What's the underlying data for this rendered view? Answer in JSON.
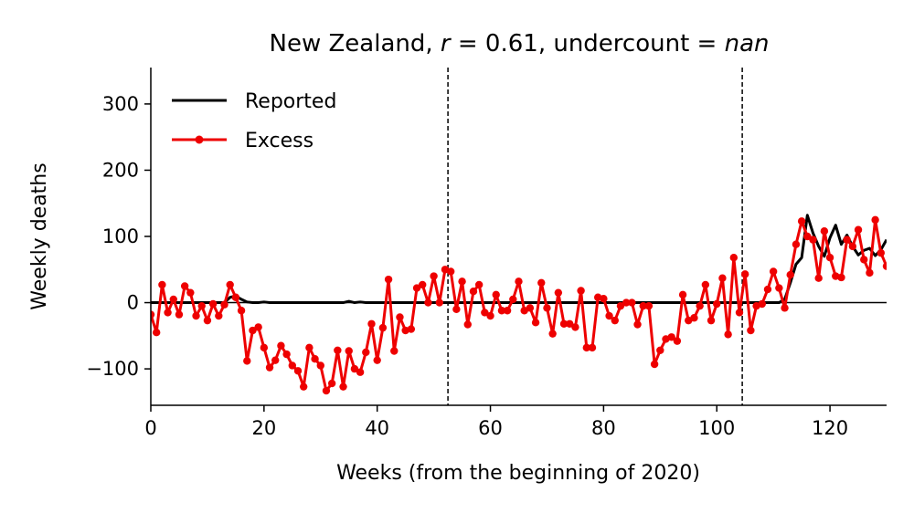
{
  "chart_data": {
    "type": "line",
    "title": {
      "prefix": "New Zealand, ",
      "r_symbol": "r",
      "r_value": " = 0.61, undercount = ",
      "nan": "nan"
    },
    "xlabel": "Weeks (from the beginning of 2020)",
    "ylabel": "Weekly deaths",
    "xlim": [
      0,
      130
    ],
    "ylim": [
      -155,
      355
    ],
    "xticks": [
      0,
      20,
      40,
      60,
      80,
      100,
      120
    ],
    "yticks": [
      -100,
      0,
      100,
      200,
      300
    ],
    "xtick_labels": [
      "0",
      "20",
      "40",
      "60",
      "80",
      "100",
      "120"
    ],
    "ytick_labels": [
      "−100",
      "0",
      "100",
      "200",
      "300"
    ],
    "vlines": [
      52.5,
      104.5
    ],
    "hline": 0,
    "legend_position": "upper-left",
    "series": [
      {
        "name": "Reported",
        "color": "#000000",
        "marker": "none",
        "values": [
          0,
          0,
          0,
          0,
          0,
          0,
          0,
          0,
          0,
          0,
          0,
          0,
          0,
          0,
          8,
          10,
          5,
          1,
          0,
          0,
          1,
          0,
          0,
          0,
          0,
          0,
          0,
          0,
          0,
          0,
          0,
          0,
          0,
          0,
          0,
          2,
          0,
          1,
          0,
          0,
          0,
          0,
          0,
          0,
          0,
          0,
          0,
          0,
          0,
          0,
          0,
          0,
          0,
          0,
          0,
          0,
          0,
          0,
          0,
          0,
          0,
          0,
          0,
          0,
          0,
          0,
          0,
          0,
          0,
          0,
          0,
          0,
          0,
          0,
          0,
          0,
          0,
          0,
          0,
          0,
          0,
          0,
          0,
          0,
          0,
          0,
          0,
          0,
          0,
          0,
          0,
          0,
          0,
          0,
          0,
          0,
          0,
          0,
          0,
          0,
          0,
          0,
          0,
          0,
          0,
          0,
          0,
          0,
          0,
          0,
          0,
          0,
          5,
          30,
          58,
          68,
          132,
          105,
          85,
          70,
          98,
          117,
          88,
          102,
          85,
          72,
          79,
          82,
          71,
          80,
          95
        ]
      },
      {
        "name": "Excess",
        "color": "#ee0000",
        "marker": "circle",
        "values": [
          -18,
          -45,
          27,
          -15,
          5,
          -18,
          25,
          15,
          -20,
          -5,
          -27,
          -2,
          -20,
          -3,
          27,
          8,
          -12,
          -88,
          -42,
          -37,
          -68,
          -98,
          -87,
          -65,
          -78,
          -95,
          -103,
          -127,
          -68,
          -85,
          -95,
          -133,
          -122,
          -72,
          -127,
          -73,
          -100,
          -105,
          -75,
          -32,
          -87,
          -38,
          35,
          -73,
          -22,
          -42,
          -40,
          22,
          27,
          0,
          40,
          0,
          50,
          47,
          -10,
          32,
          -33,
          17,
          27,
          -15,
          -20,
          12,
          -12,
          -12,
          5,
          32,
          -12,
          -8,
          -30,
          30,
          -8,
          -47,
          15,
          -32,
          -32,
          -37,
          18,
          -68,
          -68,
          8,
          6,
          -20,
          -27,
          -5,
          0,
          0,
          -33,
          -5,
          -5,
          -93,
          -72,
          -55,
          -52,
          -58,
          12,
          -27,
          -23,
          -5,
          27,
          -27,
          -2,
          37,
          -48,
          68,
          -15,
          43,
          -42,
          -5,
          -2,
          20,
          47,
          22,
          -8,
          42,
          88,
          123,
          100,
          95,
          37,
          108,
          68,
          40,
          38,
          95,
          85,
          110,
          65,
          45,
          125,
          75,
          55
        ]
      }
    ]
  }
}
